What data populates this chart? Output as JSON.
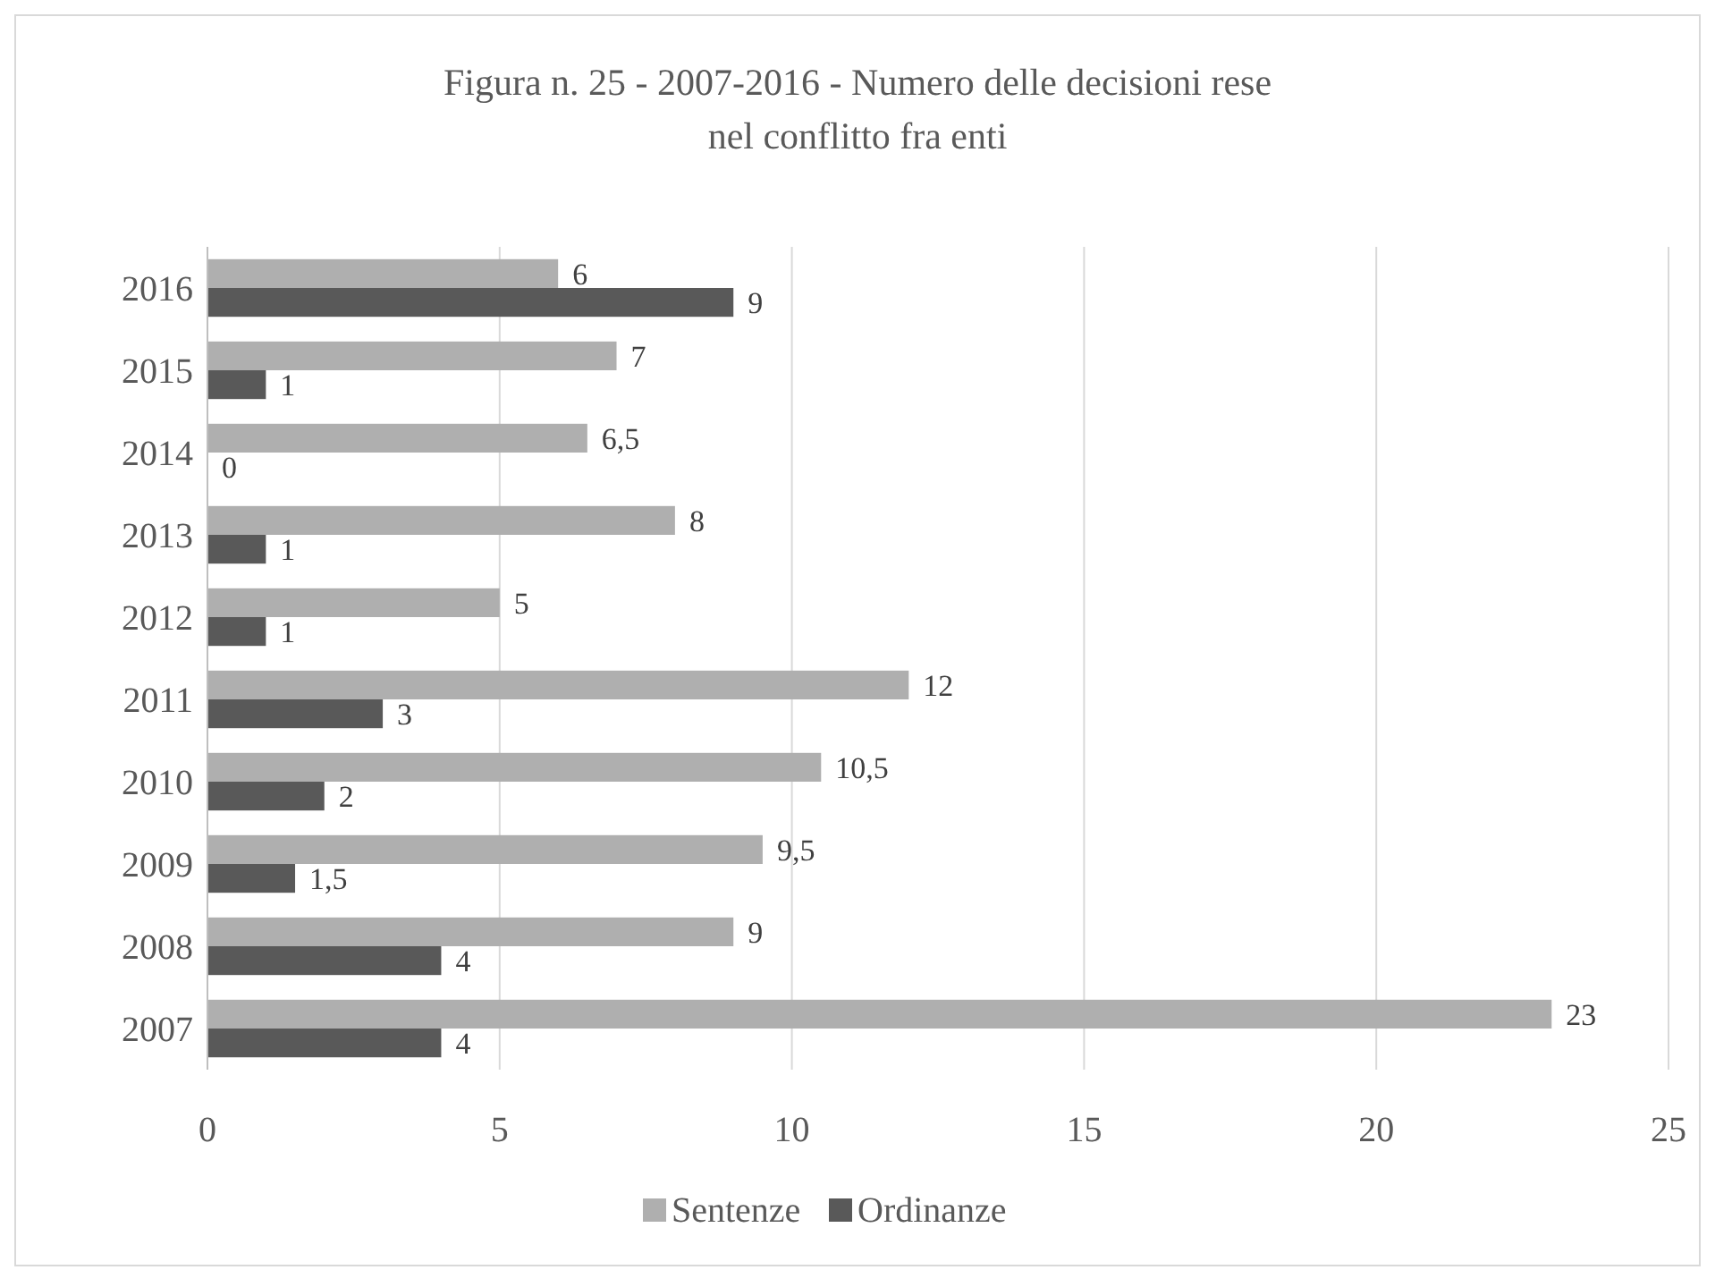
{
  "chart_data": {
    "type": "bar",
    "orientation": "horizontal",
    "title": "Figura n. 25 - 2007-2016 - Numero delle decisioni rese nel conflitto fra enti",
    "categories": [
      "2016",
      "2015",
      "2014",
      "2013",
      "2012",
      "2011",
      "2010",
      "2009",
      "2008",
      "2007"
    ],
    "series": [
      {
        "name": "Sentenze",
        "color": "#afafaf",
        "values": [
          6,
          7,
          6.5,
          8,
          5,
          12,
          10.5,
          9.5,
          9,
          23
        ],
        "value_labels": [
          "6",
          "7",
          "6,5",
          "8",
          "5",
          "12",
          "10,5",
          "9,5",
          "9",
          "23"
        ]
      },
      {
        "name": "Ordinanze",
        "color": "#595959",
        "values": [
          9,
          1,
          0,
          1,
          1,
          3,
          2,
          1.5,
          4,
          4
        ],
        "value_labels": [
          "9",
          "1",
          "0",
          "1",
          "1",
          "3",
          "2",
          "1,5",
          "4",
          "4"
        ]
      }
    ],
    "xlim": [
      0,
      25
    ],
    "xticks": [
      0,
      5,
      10,
      15,
      20,
      25
    ],
    "grid": "x",
    "legend": "bottom"
  }
}
